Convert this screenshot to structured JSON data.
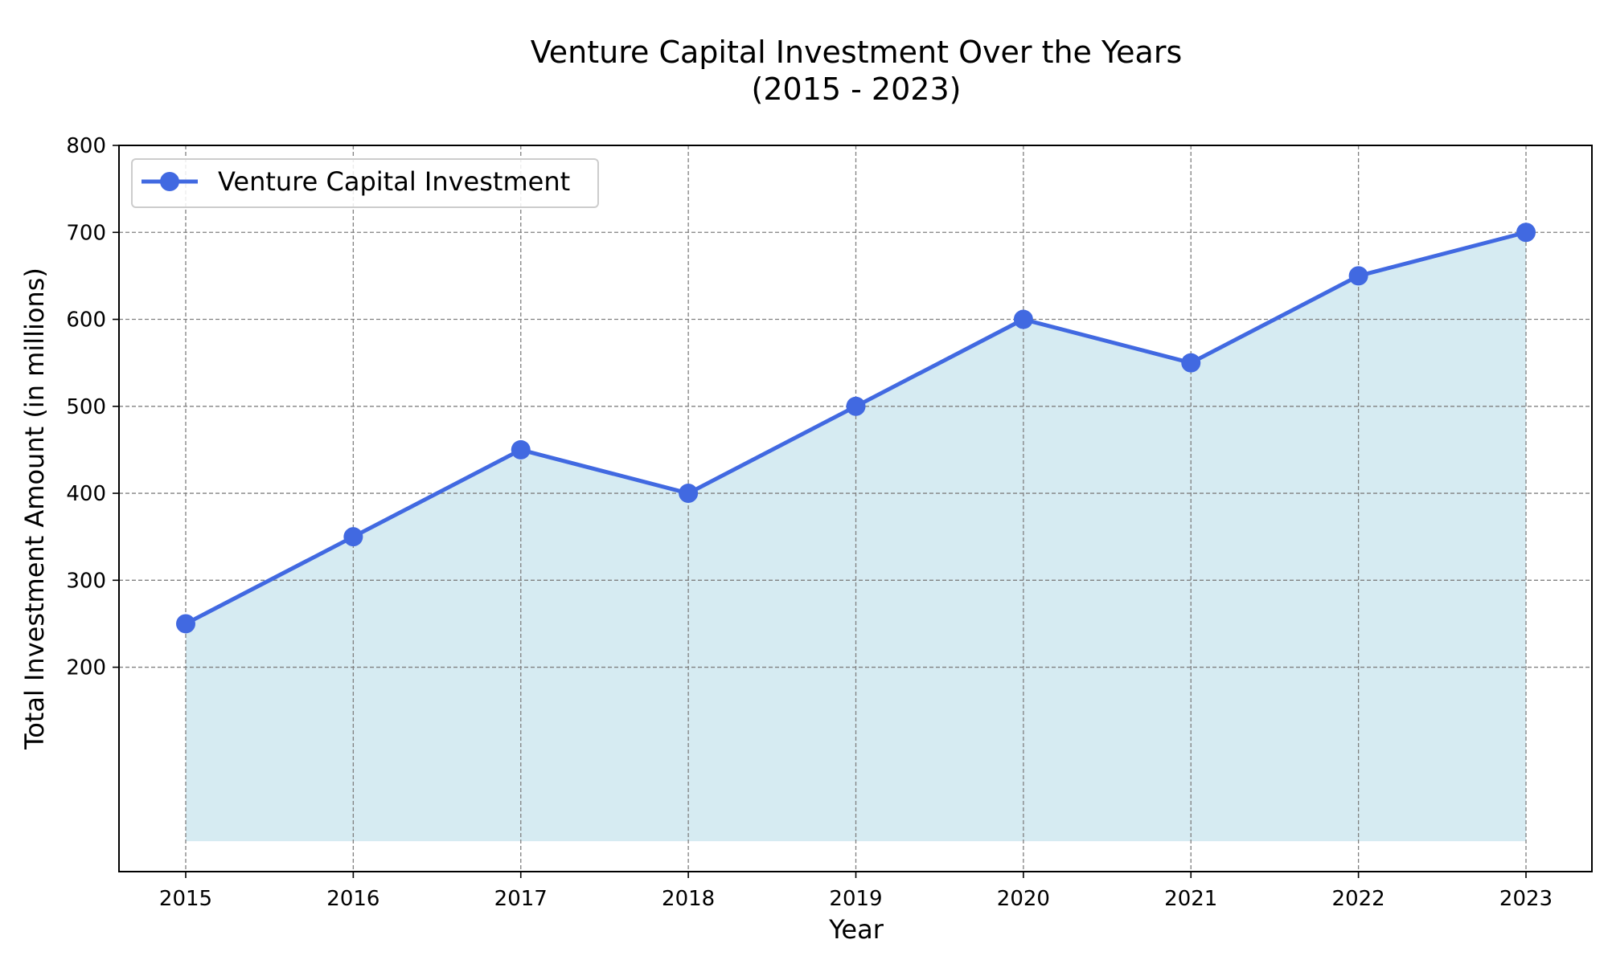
{
  "chart_data": {
    "type": "area",
    "title": [
      "Venture Capital Investment Over the Years",
      "(2015 - 2023)"
    ],
    "xlabel": "Year",
    "ylabel": "Total Investment Amount (in millions)",
    "x": [
      "2015",
      "2016",
      "2017",
      "2018",
      "2019",
      "2020",
      "2021",
      "2022",
      "2023"
    ],
    "series": [
      {
        "name": "Venture Capital Investment",
        "values": [
          250,
          350,
          450,
          400,
          500,
          600,
          550,
          650,
          700
        ],
        "line_color": "#4169e1",
        "fill_color": "#add8e6",
        "fill_opacity": 0.5,
        "fill_baseline": 0
      }
    ],
    "yticks": [
      "200",
      "300",
      "400",
      "500",
      "600",
      "700",
      "800"
    ],
    "ylim": [
      -35,
      800
    ],
    "grid": true,
    "legend_position": "top-left"
  }
}
